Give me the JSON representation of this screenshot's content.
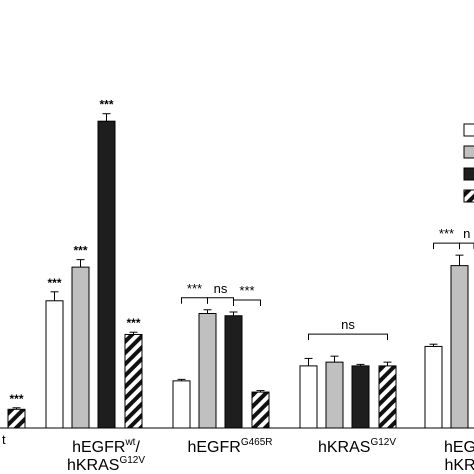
{
  "chart_data": {
    "type": "bar",
    "title": "",
    "xlabel": "",
    "ylabel": "",
    "groups": [
      {
        "label_main": "",
        "label_sup": "",
        "label_line2": "",
        "label_line2_sup": "",
        "label_partial": "t",
        "values": [
          null,
          null,
          null,
          0.25
        ],
        "errors": [
          null,
          null,
          null,
          0.02
        ],
        "stars": [
          "",
          "",
          "",
          "***"
        ]
      },
      {
        "label_main": "hEGFR",
        "label_sup": "wt",
        "label_line2": "/",
        "label_line2_main": "hKRAS",
        "label_line2_sup": "G12V",
        "values": [
          1.7,
          2.15,
          4.1,
          1.25
        ],
        "errors": [
          0.12,
          0.1,
          0.1,
          0.03
        ],
        "stars": [
          "***",
          "***",
          "***",
          "***"
        ]
      },
      {
        "label_main": "hEGFR",
        "label_sup": "G465R",
        "values": [
          0.63,
          1.53,
          1.5,
          0.48
        ],
        "errors": [
          0.02,
          0.05,
          0.05,
          0.02
        ],
        "stars": [
          "",
          "",
          "",
          ""
        ]
      },
      {
        "label_main": "hKRAS",
        "label_sup": "G12V",
        "values": [
          0.83,
          0.88,
          0.83,
          0.83
        ],
        "errors": [
          0.1,
          0.08,
          0.02,
          0.05
        ],
        "stars": [
          "",
          "",
          "",
          ""
        ]
      },
      {
        "label_main": "hEG",
        "label_line2_main": "hKR",
        "values": [
          1.09,
          2.17
        ],
        "errors": [
          0.03,
          0.14
        ],
        "stars": [
          "",
          ""
        ]
      }
    ],
    "significance": [
      {
        "group": 2,
        "from": 0,
        "to": 1,
        "text": "***"
      },
      {
        "group": 2,
        "from": 1,
        "to": 2,
        "text": "ns"
      },
      {
        "group": 2,
        "from": 2,
        "to": 3,
        "text": "***"
      },
      {
        "group": 3,
        "from": 0,
        "to": 3,
        "text": "ns"
      },
      {
        "group": 4,
        "from": 0,
        "to": 1,
        "text": "***"
      },
      {
        "group": 4,
        "from": 1,
        "to": 2,
        "text": "n"
      }
    ],
    "series_styles": [
      "white",
      "gray",
      "black",
      "hatched"
    ],
    "legend": {
      "placement": "right",
      "entries": 4
    },
    "colors": {
      "white": "#ffffff",
      "gray": "#c0c0c0",
      "black": "#1e1e1e",
      "edge": "#000000"
    },
    "ylim": [
      0,
      4.45
    ],
    "grid": false
  }
}
